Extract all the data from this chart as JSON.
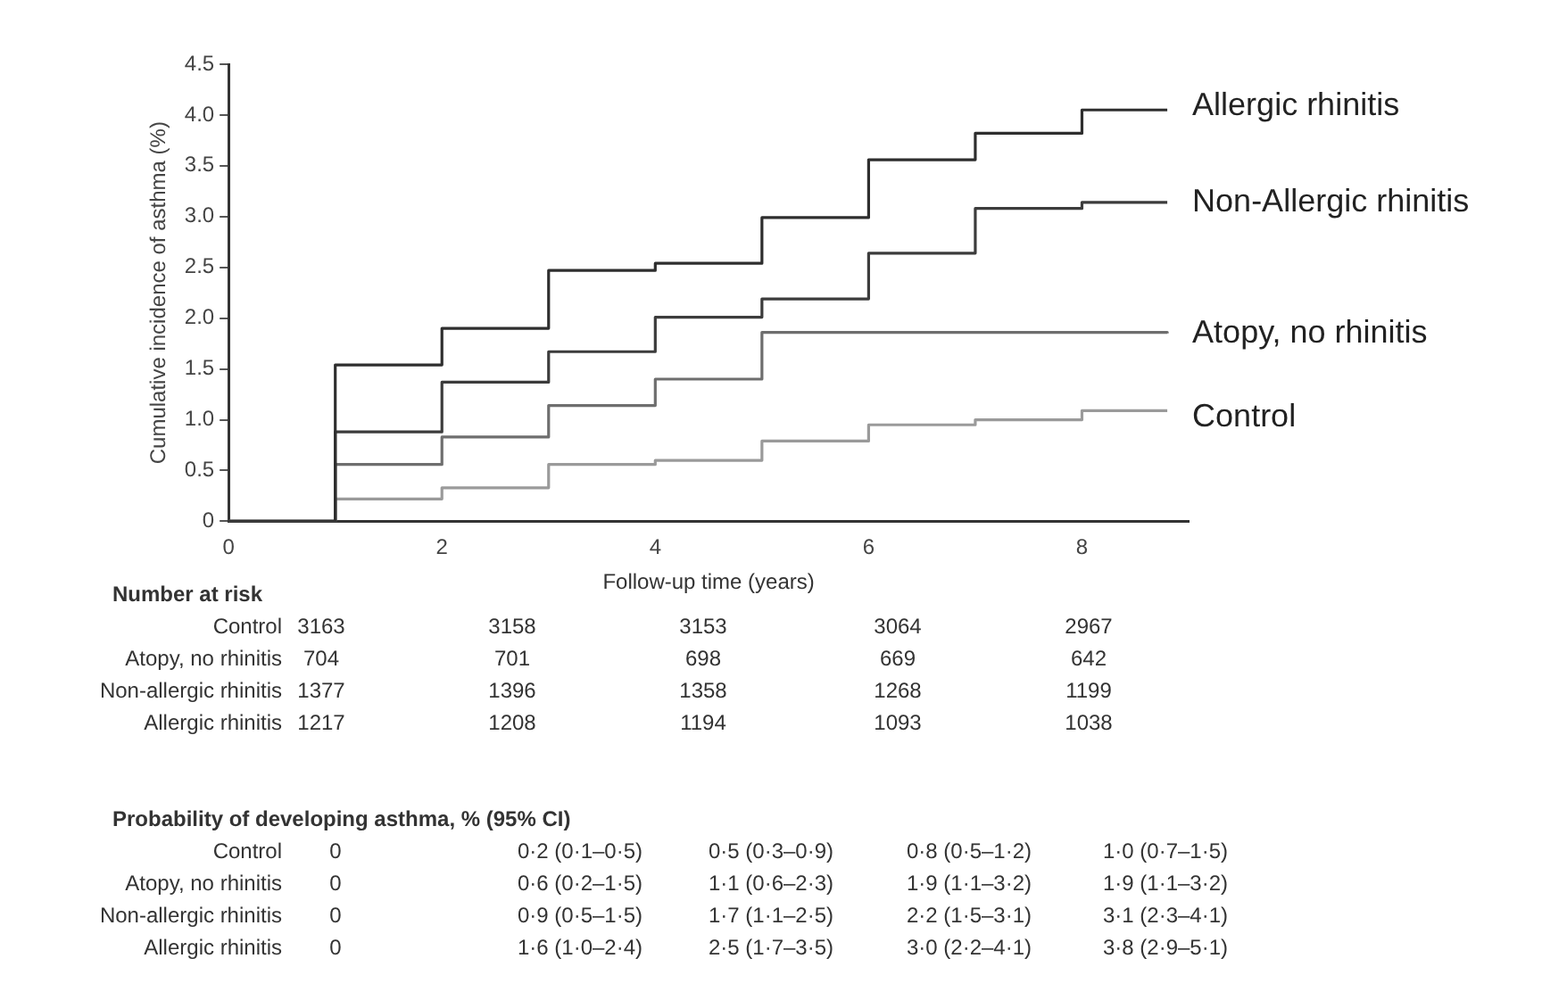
{
  "chart_data": {
    "type": "step",
    "xlabel": "Follow-up time (years)",
    "ylabel": "Cumulative incidence of asthma (%)",
    "xlim": [
      0,
      9
    ],
    "xticks": [
      0,
      2,
      4,
      6,
      8
    ],
    "ylim": [
      0,
      4.5
    ],
    "yticks": [
      0,
      0.5,
      {
        "value": 1,
        "label": "1.0"
      },
      1.5,
      {
        "value": 2,
        "label": "2.0"
      },
      2.5,
      {
        "value": 3,
        "label": "3.0"
      },
      3.5,
      {
        "value": 4,
        "label": "4.0"
      },
      4.5
    ],
    "grid": false,
    "legend": false,
    "series": [
      {
        "name": "Allergic rhinitis",
        "color": "#2e2e2e",
        "x": [
          0,
          1,
          1,
          2,
          3,
          4,
          5,
          6,
          7,
          8,
          8.8
        ],
        "values": [
          0,
          0,
          1.54,
          1.9,
          2.47,
          2.54,
          2.99,
          3.56,
          3.82,
          4.05,
          4.05
        ]
      },
      {
        "name": "Non-Allergic rhinitis",
        "color": "#3c3c3c",
        "x": [
          0,
          1,
          1,
          2,
          3,
          4,
          5,
          6,
          7,
          8,
          8.8
        ],
        "values": [
          0,
          0,
          0.88,
          1.37,
          1.67,
          2.01,
          2.19,
          2.64,
          3.08,
          3.14,
          3.14
        ]
      },
      {
        "name": "Atopy, no rhinitis",
        "color": "#6e6e6e",
        "x": [
          0,
          1,
          1,
          2,
          3,
          4,
          5,
          8.8
        ],
        "values": [
          0,
          0,
          0.56,
          0.83,
          1.14,
          1.4,
          1.86,
          1.85
        ]
      },
      {
        "name": "Control",
        "color": "#9a9a9a",
        "x": [
          0,
          1,
          1,
          2,
          3,
          4,
          5,
          6,
          7,
          8,
          8.8
        ],
        "values": [
          0,
          0,
          0.22,
          0.33,
          0.56,
          0.6,
          0.79,
          0.95,
          1.0,
          1.09,
          1.09
        ]
      }
    ],
    "annotations": [
      "Number at risk",
      "Control",
      "3163",
      "3158",
      "3153",
      "3064",
      "2967",
      "Atopy, no rhinitis",
      "704",
      "701",
      "698",
      "669",
      "642",
      "Non-allergic rhinitis",
      "1377",
      "1396",
      "1358",
      "1268",
      "1199",
      "Allergic rhinitis",
      "1217",
      "1208",
      "1194",
      "1093",
      "1038",
      "Probability of developing asthma, % (95% CI)",
      "Control",
      "0",
      "0·2 (0·1–0·5)",
      "0·5 (0·3–0·9)",
      "0·8 (0·5–1·2)",
      "1·0 (0·7–1·5)",
      "Atopy, no rhinitis",
      "0",
      "0·6 (0·2–1·5)",
      "1·1 (0·6–2·3)",
      "1·9 (1·1–3·2)",
      "1·9 (1·1–3·2)",
      "Non-allergic rhinitis",
      "0",
      "0·9 (0·5–1·5)",
      "1·7 (1·1–2·5)",
      "2·2 (1·5–3·1)",
      "3·1 (2·3–4·1)",
      "Allergic rhinitis",
      "0",
      "1·6 (1·0–2·4)",
      "2·5 (1·7–3·5)",
      "3·0 (2·2–4·1)",
      "3·8 (2·9–5·1)"
    ]
  }
}
